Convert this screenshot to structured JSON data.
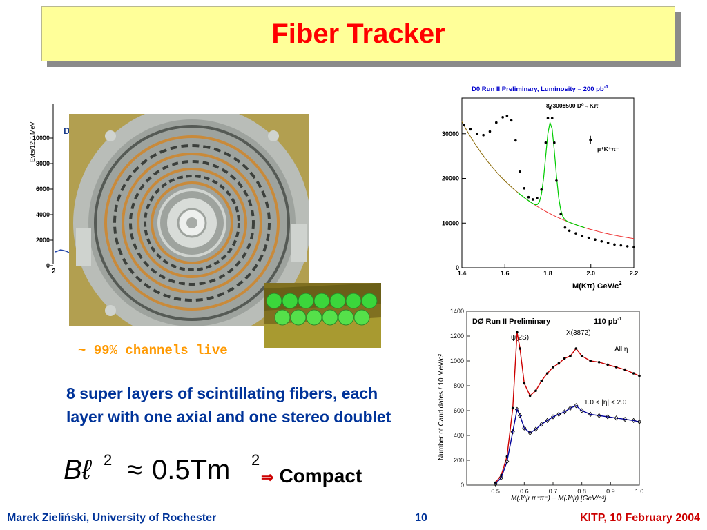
{
  "title": "Fiber Tracker",
  "channels_live": "~ 99% channels live",
  "bullet": "8 super layers of scintillating fibers, each layer with one axial and one stereo doublet",
  "formula": {
    "lhs": "Bℓ",
    "exp1": "2",
    "approx": "≈",
    "value": "0.5Tm",
    "exp2": "2"
  },
  "compact": {
    "arrow": "⇒",
    "label": "Compact"
  },
  "footer": {
    "author": "Marek Zieliński, University of Rochester",
    "page": "10",
    "venue": "KITP,  10 February 2004"
  },
  "background_plot": {
    "ylabel": "Evts/12.5 MeV",
    "yticks": [
      "10000",
      "8000",
      "6000",
      "4000",
      "2000",
      "0"
    ],
    "xtick": "2",
    "partial_label": "D"
  },
  "chart_data": [
    {
      "type": "scatter",
      "title": "D0 Run II  Preliminary, Luminosity = 200 pb",
      "title_sup": "-1",
      "annotation": "87300±500  D⁰→Kπ",
      "legend": "μ⁺K⁺π⁻",
      "xlabel": "M(Kπ) GeV/c",
      "xlabel_sup": "2",
      "xlim": [
        1.4,
        2.2
      ],
      "ylim": [
        0,
        38000
      ],
      "xticks": [
        "1.4",
        "1.6",
        "1.8",
        "2.0",
        "2.2"
      ],
      "yticks": [
        "0",
        "10000",
        "20000",
        "30000"
      ],
      "colors": {
        "title": "#0000cc",
        "fit": "#00cc00",
        "background": "#ee3333",
        "bg_low": "#886600"
      },
      "points": [
        [
          1.41,
          32000
        ],
        [
          1.44,
          31000
        ],
        [
          1.47,
          30000
        ],
        [
          1.5,
          29700
        ],
        [
          1.53,
          30500
        ],
        [
          1.56,
          32500
        ],
        [
          1.59,
          33700
        ],
        [
          1.61,
          34000
        ],
        [
          1.63,
          33000
        ],
        [
          1.65,
          28500
        ],
        [
          1.67,
          21500
        ],
        [
          1.69,
          17800
        ],
        [
          1.71,
          15800
        ],
        [
          1.73,
          15300
        ],
        [
          1.75,
          15600
        ],
        [
          1.77,
          17500
        ],
        [
          1.79,
          28000
        ],
        [
          1.8,
          33500
        ],
        [
          1.81,
          35700
        ],
        [
          1.82,
          33500
        ],
        [
          1.83,
          28000
        ],
        [
          1.84,
          19500
        ],
        [
          1.86,
          12000
        ],
        [
          1.88,
          9000
        ],
        [
          1.9,
          8300
        ],
        [
          1.93,
          7700
        ],
        [
          1.96,
          7100
        ],
        [
          1.99,
          6700
        ],
        [
          2.02,
          6300
        ],
        [
          2.05,
          5900
        ],
        [
          2.08,
          5600
        ],
        [
          2.11,
          5200
        ],
        [
          2.14,
          5000
        ],
        [
          2.17,
          4800
        ],
        [
          2.2,
          4600
        ]
      ],
      "legend_marker": [
        1.78,
        28000
      ]
    },
    {
      "type": "line",
      "title": "DØ Run II Preliminary",
      "luminosity": "110 pb",
      "luminosity_sup": "-1",
      "labels": {
        "psi2s": "ψ(2S)",
        "x3872": "X(3872)",
        "all_eta": "All η",
        "eta_cut": "1.0 < |η| < 2.0"
      },
      "xlabel": "M(J/ψ π⁺π⁻) − M(J/ψ) [GeV/c²]",
      "ylabel": "Number of Candidates / 10 MeV/c²",
      "xlim": [
        0.4,
        1.0
      ],
      "ylim": [
        0,
        1400
      ],
      "xticks": [
        "0.5",
        "0.6",
        "0.7",
        "0.8",
        "0.9",
        "1.0"
      ],
      "yticks": [
        "0",
        "200",
        "400",
        "600",
        "800",
        "1000",
        "1200",
        "1400"
      ],
      "colors": {
        "all": "#cc0000",
        "eta": "#000099"
      },
      "series": [
        {
          "name": "All η",
          "x": [
            0.5,
            0.52,
            0.54,
            0.56,
            0.575,
            0.585,
            0.6,
            0.62,
            0.64,
            0.66,
            0.68,
            0.7,
            0.72,
            0.74,
            0.76,
            0.78,
            0.8,
            0.83,
            0.86,
            0.89,
            0.92,
            0.95,
            0.98,
            1.0
          ],
          "y": [
            20,
            80,
            230,
            620,
            1230,
            1100,
            820,
            720,
            760,
            840,
            900,
            950,
            980,
            1020,
            1040,
            1100,
            1040,
            1000,
            990,
            970,
            950,
            930,
            900,
            880
          ]
        },
        {
          "name": "1.0 < |η| < 2.0",
          "x": [
            0.5,
            0.52,
            0.54,
            0.56,
            0.575,
            0.585,
            0.6,
            0.62,
            0.64,
            0.66,
            0.68,
            0.7,
            0.72,
            0.74,
            0.76,
            0.78,
            0.8,
            0.83,
            0.86,
            0.89,
            0.92,
            0.95,
            0.98,
            1.0
          ],
          "y": [
            10,
            60,
            190,
            430,
            610,
            560,
            460,
            420,
            450,
            490,
            520,
            550,
            570,
            590,
            620,
            640,
            600,
            570,
            560,
            550,
            540,
            530,
            520,
            510
          ]
        }
      ]
    }
  ]
}
